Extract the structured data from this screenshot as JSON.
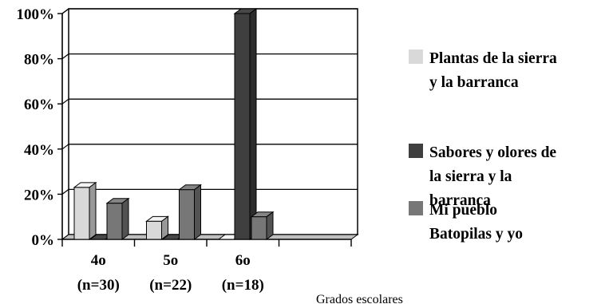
{
  "chart_data": {
    "type": "bar",
    "style": "3d-clustered-column",
    "categories": [
      [
        "4o",
        "(n=30)"
      ],
      [
        "5o",
        "(n=22)"
      ],
      [
        "6o",
        "(n=18)"
      ]
    ],
    "series": [
      {
        "name": [
          "Plantas de la sierra",
          "y la barranca"
        ],
        "color": "#d9d9d9",
        "values": [
          23,
          8,
          0
        ]
      },
      {
        "name": [
          "Sabores y olores de",
          "la sierra y la",
          "barranca"
        ],
        "color": "#3f3f3f",
        "values": [
          0,
          0,
          100
        ]
      },
      {
        "name": [
          "Mi pueblo",
          "Batopilas y yo"
        ],
        "color": "#777777",
        "values": [
          16,
          22,
          10
        ]
      }
    ],
    "yticks": [
      "0%",
      "20%",
      "40%",
      "60%",
      "80%",
      "100%"
    ],
    "ylim": [
      0,
      100
    ],
    "xlabel": "Grados escolares",
    "ylabel": "",
    "title": "",
    "grid": true,
    "legend": "right"
  }
}
